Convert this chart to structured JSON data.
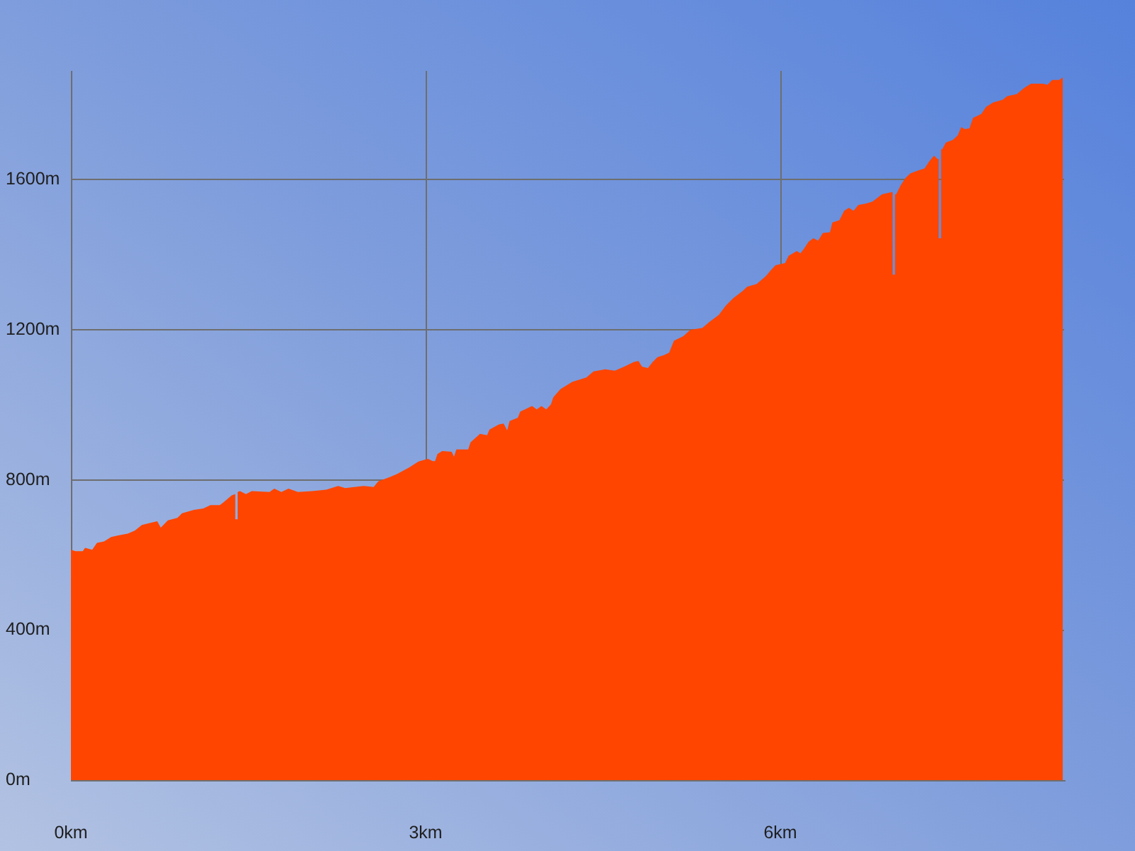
{
  "chart_data": {
    "type": "area",
    "color": "#ff4500",
    "x": [
      0,
      0.04,
      0.1,
      0.12,
      0.18,
      0.22,
      0.28,
      0.34,
      0.4,
      0.48,
      0.54,
      0.6,
      0.68,
      0.73,
      0.76,
      0.82,
      0.9,
      0.94,
      1.04,
      1.12,
      1.18,
      1.26,
      1.3,
      1.36,
      1.39,
      1.39,
      1.41,
      1.41,
      1.43,
      1.48,
      1.53,
      1.68,
      1.72,
      1.78,
      1.84,
      1.92,
      2.04,
      2.16,
      2.26,
      2.32,
      2.48,
      2.56,
      2.6,
      2.7,
      2.76,
      2.86,
      2.94,
      3.02,
      3.06,
      3.08,
      3.1,
      3.14,
      3.22,
      3.24,
      3.26,
      3.36,
      3.38,
      3.46,
      3.52,
      3.54,
      3.62,
      3.66,
      3.69,
      3.71,
      3.78,
      3.8,
      3.9,
      3.94,
      3.98,
      4.02,
      4.06,
      4.08,
      4.14,
      4.24,
      4.36,
      4.42,
      4.52,
      4.6,
      4.68,
      4.76,
      4.8,
      4.83,
      4.88,
      4.92,
      4.96,
      5.02,
      5.06,
      5.1,
      5.18,
      5.24,
      5.34,
      5.4,
      5.48,
      5.54,
      5.6,
      5.68,
      5.72,
      5.8,
      5.88,
      5.92,
      5.96,
      6.04,
      6.07,
      6.14,
      6.17,
      6.2,
      6.24,
      6.28,
      6.32,
      6.36,
      6.42,
      6.44,
      6.5,
      6.54,
      6.58,
      6.62,
      6.66,
      6.72,
      6.78,
      6.86,
      6.94,
      6.95,
      6.95,
      6.97,
      6.97,
      6.98,
      7.02,
      7.06,
      7.1,
      7.16,
      7.22,
      7.26,
      7.3,
      7.33,
      7.34,
      7.34,
      7.36,
      7.36,
      7.37,
      7.4,
      7.46,
      7.5,
      7.53,
      7.56,
      7.6,
      7.63,
      7.7,
      7.74,
      7.8,
      7.88,
      7.92,
      8.0,
      8.06,
      8.12,
      8.22,
      8.26,
      8.3,
      8.36,
      8.39
    ],
    "values": [
      614,
      610,
      610,
      619,
      614,
      632,
      636,
      648,
      652,
      657,
      665,
      680,
      686,
      690,
      673,
      692,
      699,
      711,
      720,
      724,
      733,
      733,
      743,
      759,
      762,
      695,
      695,
      768,
      770,
      762,
      770,
      768,
      777,
      768,
      777,
      768,
      770,
      774,
      784,
      778,
      784,
      781,
      796,
      808,
      816,
      833,
      849,
      856,
      850,
      850,
      869,
      877,
      875,
      862,
      881,
      881,
      900,
      923,
      919,
      934,
      948,
      950,
      932,
      957,
      966,
      982,
      997,
      988,
      997,
      988,
      1001,
      1020,
      1042,
      1061,
      1073,
      1089,
      1095,
      1091,
      1102,
      1114,
      1117,
      1102,
      1098,
      1114,
      1127,
      1133,
      1139,
      1171,
      1183,
      1200,
      1205,
      1221,
      1240,
      1265,
      1284,
      1303,
      1315,
      1322,
      1344,
      1359,
      1372,
      1378,
      1397,
      1410,
      1404,
      1416,
      1435,
      1444,
      1438,
      1458,
      1460,
      1486,
      1492,
      1517,
      1525,
      1517,
      1533,
      1536,
      1542,
      1561,
      1567,
      1567,
      1347,
      1347,
      1561,
      1561,
      1586,
      1605,
      1617,
      1624,
      1630,
      1649,
      1664,
      1655,
      1655,
      1444,
      1444,
      1681,
      1681,
      1699,
      1706,
      1718,
      1740,
      1735,
      1737,
      1765,
      1775,
      1794,
      1806,
      1813,
      1823,
      1828,
      1844,
      1856,
      1856,
      1853,
      1866,
      1866,
      1873
    ],
    "xlim": [
      0,
      8.4
    ],
    "ylim": [
      0,
      1890
    ],
    "xticks": [
      {
        "value": 0,
        "label": "0km"
      },
      {
        "value": 3,
        "label": "3km"
      },
      {
        "value": 6,
        "label": "6km"
      }
    ],
    "yticks": [
      {
        "value": 0,
        "label": "0m"
      },
      {
        "value": 400,
        "label": "400m"
      },
      {
        "value": 800,
        "label": "800m"
      },
      {
        "value": 1200,
        "label": "1200m"
      },
      {
        "value": 1600,
        "label": "1600m"
      }
    ],
    "grid": true
  }
}
